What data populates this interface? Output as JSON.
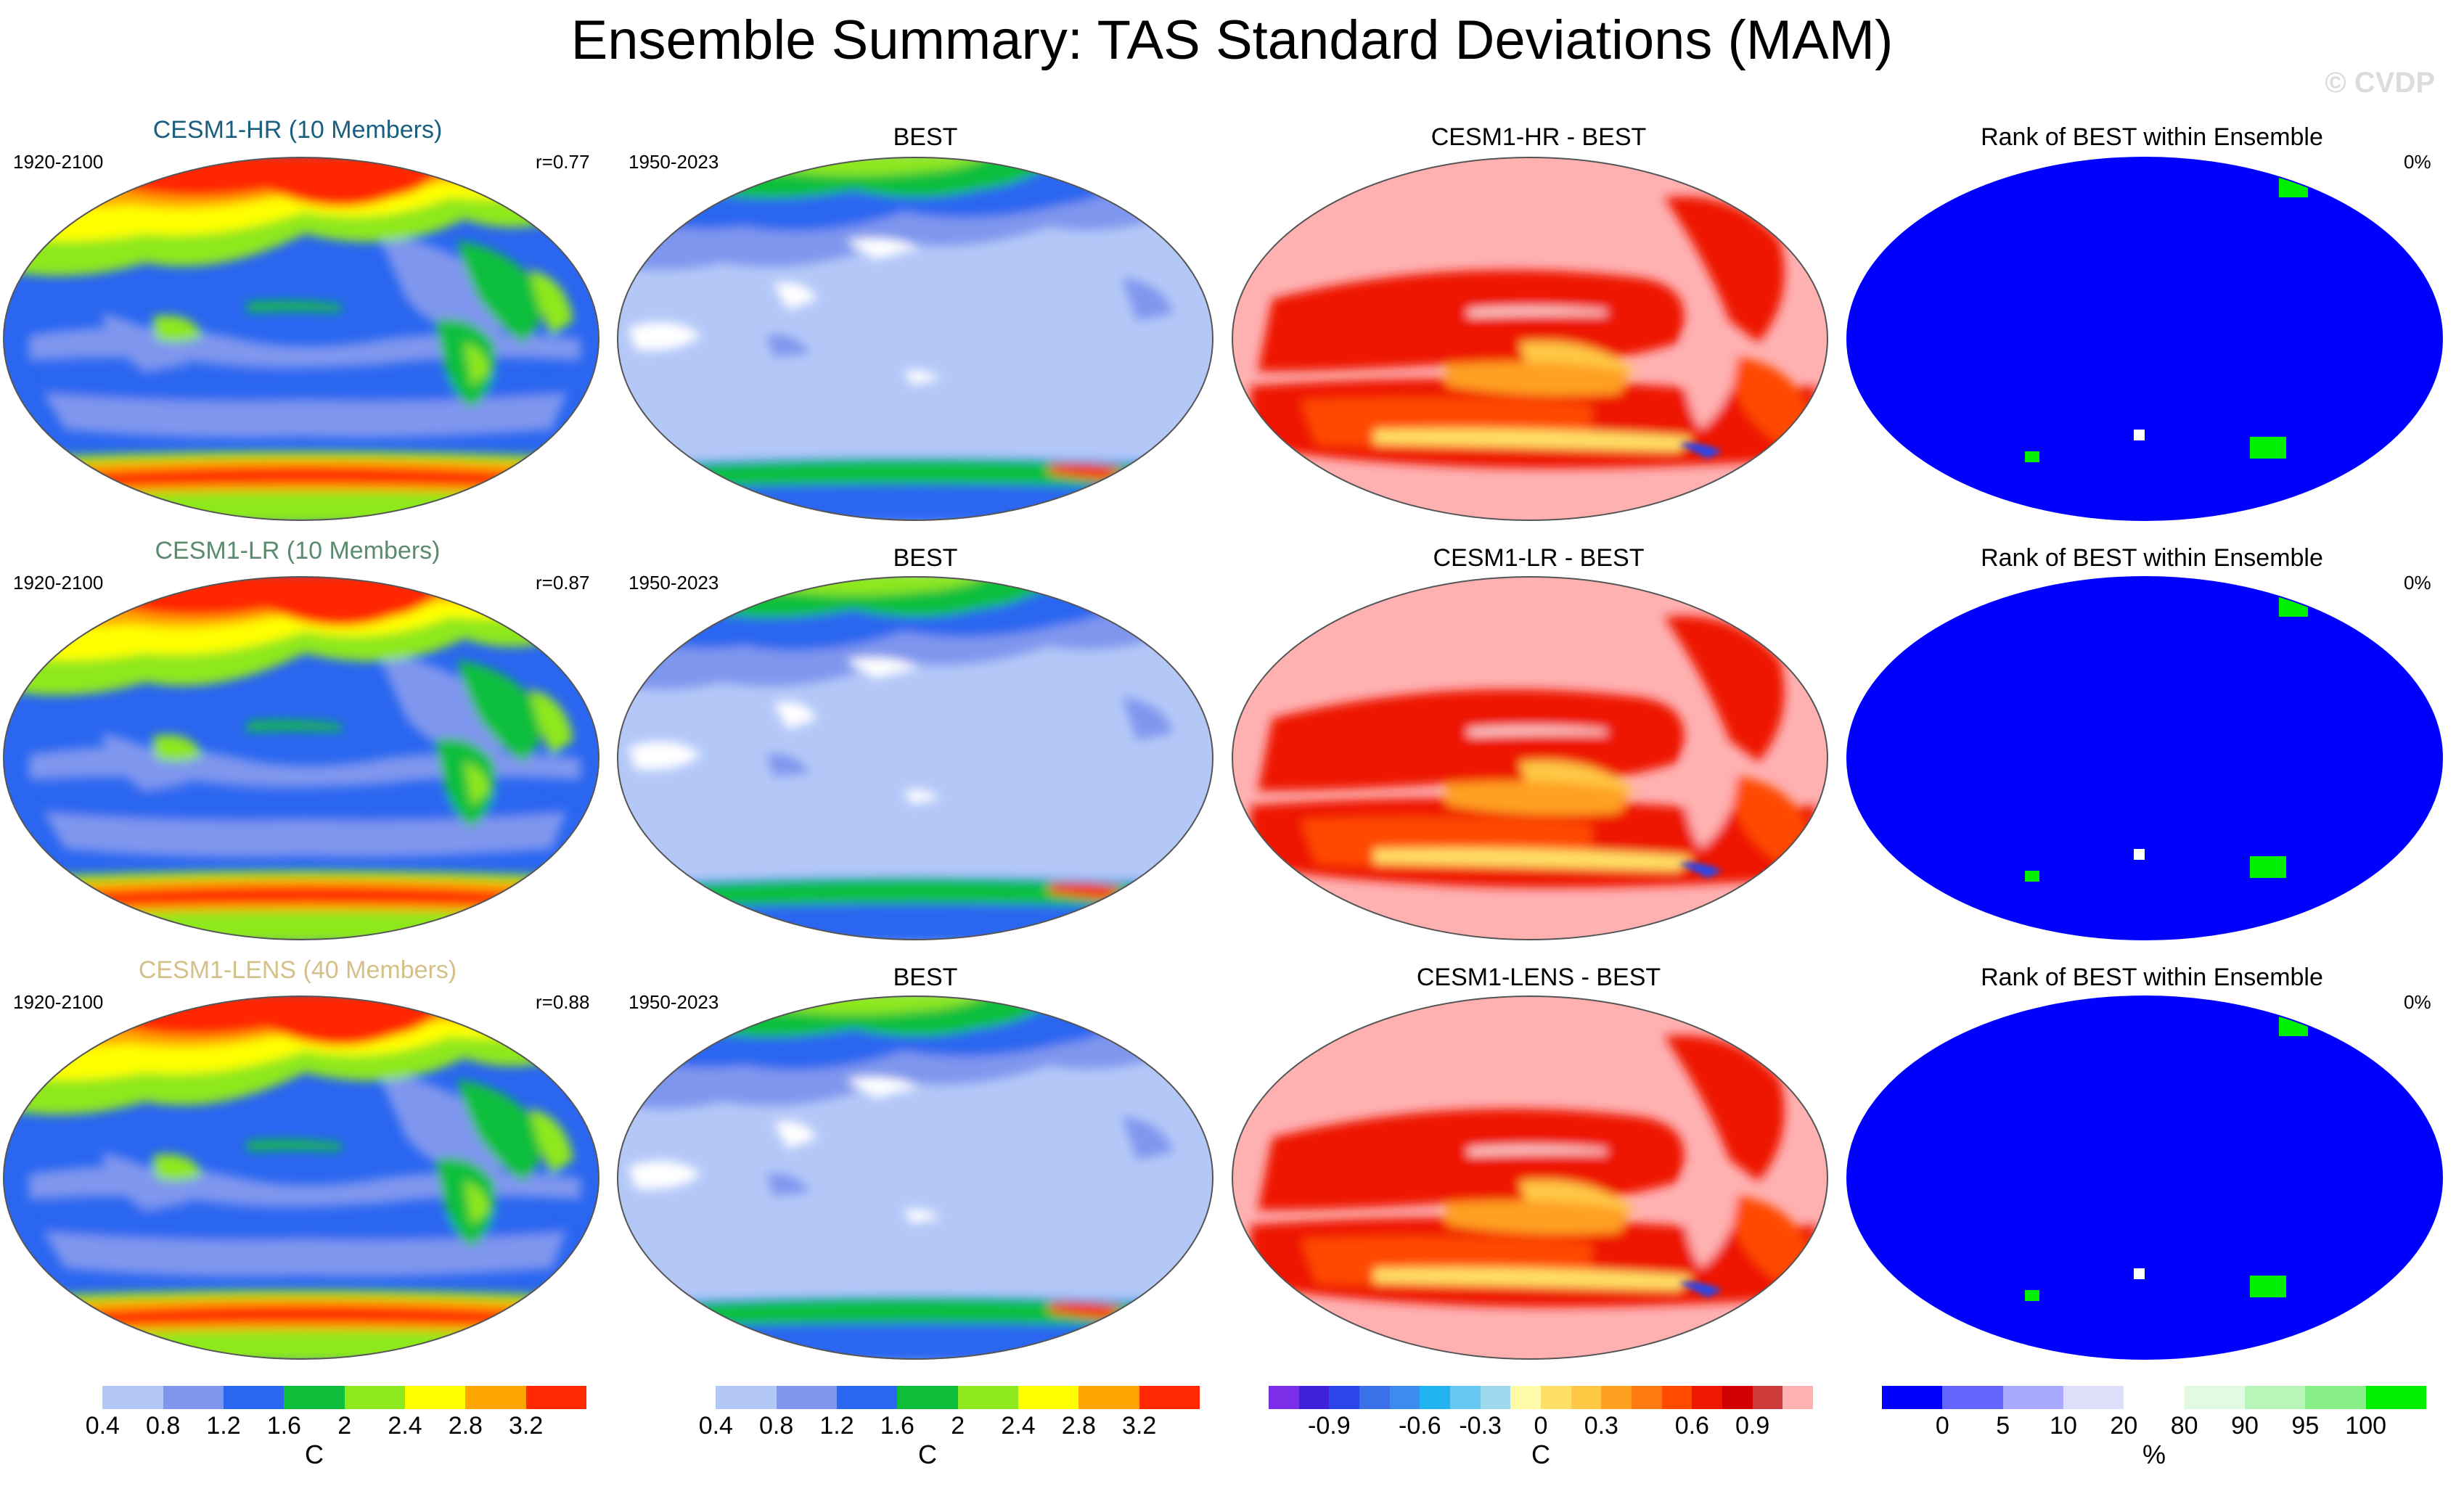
{
  "title": "Ensemble Summary: TAS Standard Deviations (MAM)",
  "watermark": "© CVDP",
  "rows": [
    {
      "model": "CESM1-HR (10 Members)",
      "model_color": "#1a5e80",
      "model_years": "1920-2100",
      "corr": "r=0.77",
      "obs": "BEST",
      "obs_years": "1950-2023",
      "diff": "CESM1-HR - BEST",
      "rank": "Rank of BEST within Ensemble",
      "rank_pct": "0%"
    },
    {
      "model": "CESM1-LR (10 Members)",
      "model_color": "#5b8a6e",
      "model_years": "1920-2100",
      "corr": "r=0.87",
      "obs": "BEST",
      "obs_years": "1950-2023",
      "diff": "CESM1-LR - BEST",
      "rank": "Rank of BEST within Ensemble",
      "rank_pct": "0%"
    },
    {
      "model": "CESM1-LENS (40 Members)",
      "model_color": "#d4c088",
      "model_years": "1920-2100",
      "corr": "r=0.88",
      "obs": "BEST",
      "obs_years": "1950-2023",
      "diff": "CESM1-LENS - BEST",
      "rank": "Rank of BEST within Ensemble",
      "rank_pct": "0%"
    }
  ],
  "colorbars": [
    {
      "colors": [
        "#ffffff",
        "#b4c8f8",
        "#7f96ee",
        "#2a66f0",
        "#0fbf3c",
        "#8ee81e",
        "#ffff00",
        "#ffa500",
        "#ff2800"
      ],
      "ticks": [
        "0.4",
        "0.8",
        "1.2",
        "1.6",
        "2",
        "2.4",
        "2.8",
        "3.2"
      ],
      "unit": "C"
    },
    {
      "colors": [
        "#ffffff",
        "#b4c8f8",
        "#7f96ee",
        "#2a66f0",
        "#0fbf3c",
        "#8ee81e",
        "#ffff00",
        "#ffa500",
        "#ff2800"
      ],
      "ticks": [
        "0.4",
        "0.8",
        "1.2",
        "1.6",
        "2",
        "2.4",
        "2.8",
        "3.2"
      ],
      "unit": "C"
    },
    {
      "colors": [
        "#7b2ee8",
        "#4020d8",
        "#2a46e8",
        "#3a70e8",
        "#3c8cf0",
        "#22b4f0",
        "#66c8f0",
        "#9ed8ee",
        "#fffaaa",
        "#ffe066",
        "#ffc844",
        "#ffa020",
        "#ff7a10",
        "#ff4a00",
        "#ee1800",
        "#d00000",
        "#cc3a3a",
        "#ffb0b0"
      ],
      "ticks": [
        "-0.9",
        "-0.6",
        "-0.3",
        "0",
        "0.3",
        "0.6",
        "0.9"
      ],
      "unit": "C"
    },
    {
      "colors": [
        "#0000ff",
        "#6565ff",
        "#a8a8ff",
        "#dedefa",
        "#ffffff",
        "#e2fae2",
        "#b8f5b8",
        "#88ee88",
        "#00ee00"
      ],
      "ticks": [
        "0",
        "5",
        "10",
        "20",
        "80",
        "90",
        "95",
        "100"
      ],
      "unit": "%"
    }
  ]
}
